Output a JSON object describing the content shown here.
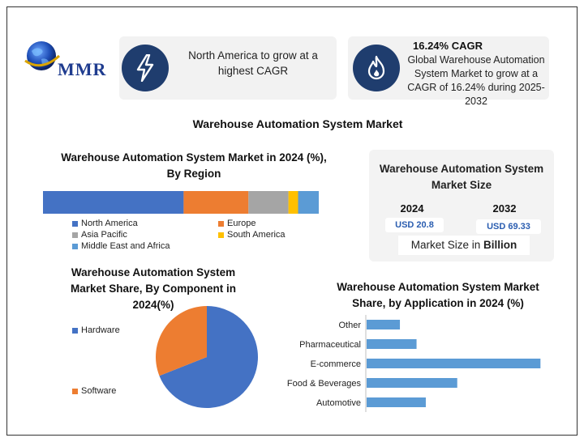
{
  "logo": {
    "text": "MMR"
  },
  "card_left": {
    "text": "North America to grow at a highest CAGR",
    "icon": "lightning-icon"
  },
  "card_right": {
    "headline": "16.24% CAGR",
    "text": "Global Warehouse Automation System Market to grow at a CAGR of 16.24% during 2025-2032",
    "icon": "flame-icon"
  },
  "main_title": "Warehouse Automation System Market",
  "market_size": {
    "title": "Warehouse Automation System Market Size",
    "year1": "2024",
    "value1": "USD 20.8",
    "year2": "2032",
    "value2": "USD 69.33",
    "footer_prefix": "Market Size in ",
    "footer_bold": "Billion"
  },
  "colors": {
    "blue": "#4472c4",
    "orange": "#ed7d31",
    "gray": "#a5a5a5",
    "yellow": "#ffc000",
    "lightblue": "#5b9bd5",
    "dark": "#1f3d6e"
  },
  "chart_data": [
    {
      "type": "bar",
      "orientation": "horizontal-stacked",
      "title": "Warehouse Automation System Market in 2024 (%), By Region",
      "series": [
        {
          "name": "North America",
          "value": 51,
          "color": "#4472c4"
        },
        {
          "name": "Europe",
          "value": 23.5,
          "color": "#ed7d31"
        },
        {
          "name": "Asia Pacific",
          "value": 14.5,
          "color": "#a5a5a5"
        },
        {
          "name": "South America",
          "value": 3.5,
          "color": "#ffc000"
        },
        {
          "name": "Middle East and Africa",
          "value": 7.5,
          "color": "#5b9bd5"
        }
      ],
      "xlim": [
        0,
        100
      ]
    },
    {
      "type": "pie",
      "title": "Warehouse Automation System Market Share, By Component in 2024(%)",
      "slices": [
        {
          "name": "Hardware",
          "value": 69,
          "color": "#4472c4"
        },
        {
          "name": "Software",
          "value": 31,
          "color": "#ed7d31"
        }
      ]
    },
    {
      "type": "bar",
      "orientation": "horizontal",
      "title": "Warehouse Automation System Market Share, by Application in 2024 (%)",
      "categories": [
        "Other",
        "Pharmaceutical",
        "E-commerce",
        "Food & Beverages",
        "Automotive"
      ],
      "values": [
        9,
        13.5,
        47,
        24.5,
        16
      ],
      "xlim": [
        0,
        50
      ],
      "color": "#5b9bd5"
    }
  ]
}
